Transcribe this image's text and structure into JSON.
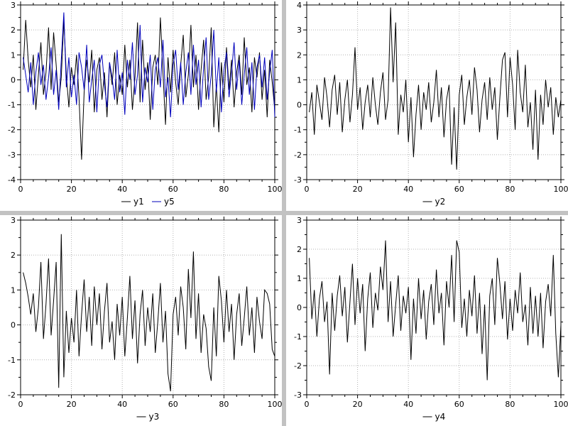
{
  "window": {
    "background": "#c2c2c2",
    "panel_background": "#ffffff",
    "frame_color": "#000000",
    "grid_color": "#b3b3b3"
  },
  "chart_data": [
    {
      "type": "line",
      "title": "",
      "xlabel": "",
      "ylabel": "",
      "xlim": [
        0,
        100
      ],
      "ylim": [
        -4,
        3
      ],
      "x_ticks": [
        0,
        20,
        40,
        60,
        80,
        100
      ],
      "y_ticks": [
        -4,
        -3,
        -2,
        -1,
        0,
        1,
        2,
        3
      ],
      "x_minor_step": 5,
      "y_minor_step": 0.5,
      "x_start": 1,
      "x_step": 1,
      "grid": true,
      "legend_position": "bottom",
      "series": [
        {
          "name": "y1",
          "color": "#000000",
          "values": [
            0.4,
            2.4,
            0.8,
            -0.3,
            1.0,
            -1.2,
            0.2,
            1.5,
            -0.6,
            0.3,
            2.1,
            -0.4,
            1.9,
            0.6,
            -0.9,
            0.1,
            2.4,
            0.2,
            -1.1,
            0.5,
            -0.2,
            1.0,
            -0.7,
            -3.2,
            -0.5,
            0.8,
            -0.1,
            1.2,
            -1.3,
            0.4,
            0.9,
            -0.8,
            0.3,
            -1.5,
            0.7,
            -0.2,
            1.1,
            -1.0,
            0.2,
            -0.6,
            1.4,
            -0.3,
            0.8,
            -1.2,
            0.1,
            2.3,
            -0.9,
            1.6,
            -0.4,
            0.7,
            -1.6,
            0.5,
            1.0,
            -0.2,
            2.5,
            0.3,
            -1.8,
            0.9,
            -0.5,
            1.2,
            -0.1,
            -1.0,
            0.6,
            1.8,
            -0.7,
            0.2,
            2.2,
            -0.3,
            1.0,
            -1.2,
            0.4,
            1.6,
            -0.8,
            0.1,
            2.1,
            -1.9,
            -0.2,
            -2.1,
            0.7,
            -0.9,
            1.3,
            -0.4,
            0.8,
            -1.1,
            0.3,
            1.0,
            -0.6,
            1.7,
            -0.2,
            0.5,
            -1.3,
            0.9,
            0.1,
            1.1,
            -0.8,
            0.4,
            -1.5,
            0.8,
            -0.1,
            -1.2
          ]
        },
        {
          "name": "y5",
          "color": "#0000bb",
          "values": [
            0.9,
            0.2,
            -0.5,
            0.7,
            -1.0,
            0.3,
            1.1,
            -0.2,
            0.6,
            -0.8,
            0.1,
            1.3,
            -0.6,
            0.4,
            -1.2,
            0.8,
            2.7,
            -0.3,
            0.9,
            -0.7,
            0.2,
            -1.0,
            1.1,
            0.5,
            -0.4,
            1.4,
            -0.9,
            0.0,
            0.8,
            -1.3,
            0.6,
            1.0,
            -0.2,
            -1.1,
            0.7,
            0.1,
            -0.8,
            1.2,
            -0.5,
            0.3,
            -1.4,
            0.8,
            0.0,
            1.5,
            -0.6,
            0.2,
            2.2,
            -0.9,
            0.5,
            -0.1,
            1.0,
            -1.2,
            0.4,
            0.9,
            -0.3,
            1.6,
            -0.7,
            0.1,
            -1.5,
            0.6,
            1.2,
            -0.4,
            0.7,
            -1.0,
            0.3,
            1.1,
            -0.6,
            1.4,
            -0.2,
            0.8,
            -1.1,
            0.5,
            1.7,
            -0.8,
            0.2,
            2.0,
            -0.5,
            0.9,
            -1.3,
            0.4,
            1.1,
            -0.7,
            0.3,
            1.5,
            -0.4,
            0.8,
            -1.0,
            0.2,
            1.3,
            -0.6,
            0.7,
            -1.2,
            0.5,
            1.0,
            -0.3,
            0.9,
            -0.8,
            0.3,
            1.2,
            -1.5
          ]
        }
      ]
    },
    {
      "type": "line",
      "title": "",
      "xlabel": "",
      "ylabel": "",
      "xlim": [
        0,
        100
      ],
      "ylim": [
        -3,
        4
      ],
      "x_ticks": [
        0,
        20,
        40,
        60,
        80,
        100
      ],
      "y_ticks": [
        -3,
        -2,
        -1,
        0,
        1,
        2,
        3,
        4
      ],
      "x_minor_step": 5,
      "y_minor_step": 0.5,
      "x_start": 1,
      "x_step": 1,
      "grid": true,
      "legend_position": "bottom",
      "series": [
        {
          "name": "y2",
          "color": "#000000",
          "values": [
            -0.3,
            0.5,
            -1.2,
            0.8,
            0.1,
            -0.6,
            1.1,
            0.3,
            -0.9,
            0.6,
            1.2,
            -0.4,
            0.9,
            -1.1,
            0.2,
            1.0,
            -0.7,
            0.4,
            2.3,
            -0.2,
            0.7,
            -1.0,
            0.1,
            0.8,
            -0.5,
            1.1,
            0.0,
            -0.8,
            0.5,
            1.3,
            -0.6,
            0.2,
            3.9,
            0.9,
            3.3,
            -1.2,
            0.4,
            -0.3,
            1.0,
            -1.5,
            0.3,
            -2.1,
            -0.4,
            0.8,
            -1.0,
            0.5,
            -0.2,
            0.9,
            -0.7,
            0.1,
            1.4,
            -0.5,
            0.7,
            -1.3,
            0.2,
            0.8,
            -2.4,
            -0.1,
            -2.6,
            0.4,
            1.2,
            -0.8,
            0.3,
            1.0,
            -0.4,
            1.5,
            0.6,
            -1.1,
            0.2,
            0.9,
            -0.6,
            1.1,
            -0.2,
            0.7,
            -1.4,
            0.3,
            1.8,
            2.1,
            -0.5,
            1.9,
            0.8,
            -1.0,
            2.2,
            0.5,
            -0.3,
            1.6,
            -0.9,
            0.1,
            -1.8,
            0.6,
            -2.2,
            0.4,
            -0.8,
            1.0,
            -0.1,
            0.7,
            -1.2,
            0.3,
            -0.5,
            0.2
          ]
        }
      ]
    },
    {
      "type": "line",
      "title": "",
      "xlabel": "",
      "ylabel": "",
      "xlim": [
        0,
        100
      ],
      "ylim": [
        -2,
        3
      ],
      "x_ticks": [
        0,
        20,
        40,
        60,
        80,
        100
      ],
      "y_ticks": [
        -2,
        -1,
        0,
        1,
        2,
        3
      ],
      "x_minor_step": 5,
      "y_minor_step": 0.5,
      "x_start": 1,
      "x_step": 1,
      "grid": true,
      "legend_position": "bottom",
      "series": [
        {
          "name": "y3",
          "color": "#000000",
          "values": [
            1.5,
            1.2,
            0.8,
            0.3,
            0.9,
            -0.2,
            0.5,
            1.8,
            -0.4,
            0.6,
            1.9,
            -0.3,
            0.7,
            1.8,
            -1.8,
            2.6,
            -1.5,
            0.4,
            -0.8,
            0.2,
            -0.5,
            1.0,
            -0.9,
            0.3,
            1.3,
            -0.2,
            0.8,
            -0.6,
            1.1,
            0.0,
            0.9,
            -0.7,
            0.4,
            1.2,
            -0.5,
            0.1,
            -1.0,
            0.6,
            -0.3,
            0.8,
            -0.9,
            0.2,
            1.4,
            -0.4,
            0.7,
            -1.1,
            0.3,
            1.0,
            -0.6,
            0.5,
            -0.2,
            0.9,
            -0.8,
            0.1,
            1.2,
            -0.5,
            0.4,
            -1.4,
            -1.9,
            0.3,
            0.8,
            -0.3,
            1.1,
            0.5,
            -0.7,
            1.6,
            0.2,
            2.1,
            -0.4,
            0.9,
            -0.8,
            0.3,
            -0.1,
            -1.2,
            -1.6,
            0.5,
            -0.9,
            1.4,
            0.7,
            -0.5,
            1.0,
            -0.2,
            0.6,
            -1.0,
            0.3,
            0.9,
            -0.6,
            0.2,
            1.1,
            -0.3,
            0.5,
            -0.8,
            0.8,
            0.1,
            -0.4,
            1.0,
            0.9,
            0.6,
            -0.7,
            -0.9
          ]
        }
      ]
    },
    {
      "type": "line",
      "title": "",
      "xlabel": "",
      "ylabel": "",
      "xlim": [
        0,
        100
      ],
      "ylim": [
        -3,
        3
      ],
      "x_ticks": [
        0,
        20,
        40,
        60,
        80,
        100
      ],
      "y_ticks": [
        -3,
        -2,
        -1,
        0,
        1,
        2,
        3
      ],
      "x_minor_step": 5,
      "y_minor_step": 0.5,
      "x_start": 1,
      "x_step": 1,
      "grid": true,
      "legend_position": "bottom",
      "series": [
        {
          "name": "y4",
          "color": "#000000",
          "values": [
            1.7,
            -0.4,
            0.6,
            -1.0,
            0.3,
            0.9,
            -0.5,
            0.2,
            -2.3,
            0.5,
            -0.8,
            0.4,
            1.1,
            -0.3,
            0.7,
            -1.2,
            0.2,
            1.5,
            -0.6,
            1.0,
            -0.2,
            0.8,
            -1.5,
            0.3,
            1.2,
            -0.7,
            0.5,
            -0.1,
            1.4,
            0.6,
            2.3,
            -0.5,
            0.9,
            -1.0,
            0.1,
            1.1,
            -0.8,
            0.4,
            -0.2,
            0.7,
            -1.8,
            0.3,
            -0.9,
            1.0,
            -0.4,
            0.6,
            -1.1,
            0.2,
            0.8,
            -0.6,
            1.3,
            -0.2,
            0.5,
            -1.3,
            0.9,
            0.0,
            1.8,
            -0.5,
            2.3,
            1.9,
            -0.7,
            0.3,
            -1.0,
            0.6,
            -0.3,
            1.1,
            -0.9,
            0.5,
            -1.6,
            0.1,
            -2.5,
            0.4,
            1.0,
            -0.6,
            1.7,
            0.8,
            -0.4,
            0.9,
            -1.1,
            0.3,
            -0.8,
            0.6,
            -0.2,
            1.2,
            -0.5,
            0.1,
            -1.3,
            0.7,
            -0.9,
            0.4,
            -1.0,
            0.5,
            -1.4,
            0.2,
            0.8,
            -0.3,
            1.8,
            -0.9,
            -2.4,
            -0.6
          ]
        }
      ]
    }
  ]
}
